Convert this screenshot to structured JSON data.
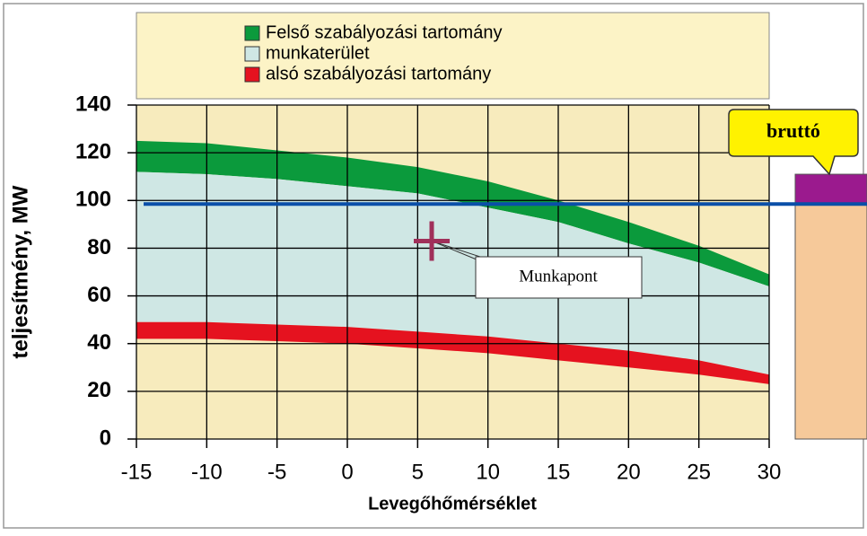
{
  "chart_data": {
    "type": "band",
    "x_label": "Levegőhőmérséklet",
    "y_label": "teljesítmény, MW",
    "x": [
      -15,
      -10,
      -5,
      0,
      5,
      10,
      15,
      20,
      25,
      30
    ],
    "series": [
      {
        "name": "Felső szabályozási tartomány",
        "color": "#0b9a3c",
        "upper": [
          125,
          124,
          121,
          118,
          114,
          108,
          100,
          91,
          81,
          69
        ],
        "lower": [
          112,
          111,
          109,
          106,
          103,
          97,
          91,
          82,
          74,
          64
        ]
      },
      {
        "name": "munkaterület",
        "color": "#cfe7e4",
        "upper": [
          112,
          111,
          109,
          106,
          103,
          97,
          91,
          82,
          74,
          64
        ],
        "lower": [
          49,
          49,
          48,
          47,
          45,
          43,
          40,
          37,
          33,
          27
        ]
      },
      {
        "name": "alsó szabályozási tartomány",
        "color": "#e5121f",
        "upper": [
          49,
          49,
          48,
          47,
          45,
          43,
          40,
          37,
          33,
          27
        ],
        "lower": [
          42,
          42,
          41,
          40,
          38,
          36,
          33,
          30,
          27,
          23
        ]
      }
    ],
    "reference_line": {
      "value": 98.5,
      "color": "#0a4fa8"
    },
    "point": {
      "label": "Munkapont",
      "x": 6,
      "y": 83,
      "color": "#a0305a"
    },
    "brutto": {
      "label": "bruttó",
      "segments": [
        {
          "value": 99,
          "color": "#f6c99a"
        },
        {
          "value": 12,
          "color": "#9b1a8e"
        }
      ]
    },
    "xlim": [
      -15,
      30
    ],
    "xticks": [
      -15,
      -10,
      -5,
      0,
      5,
      10,
      15,
      20,
      25,
      30
    ],
    "ylim": [
      0,
      140
    ],
    "yticks": [
      0,
      20,
      40,
      60,
      80,
      100,
      120,
      140
    ],
    "grid": true
  }
}
